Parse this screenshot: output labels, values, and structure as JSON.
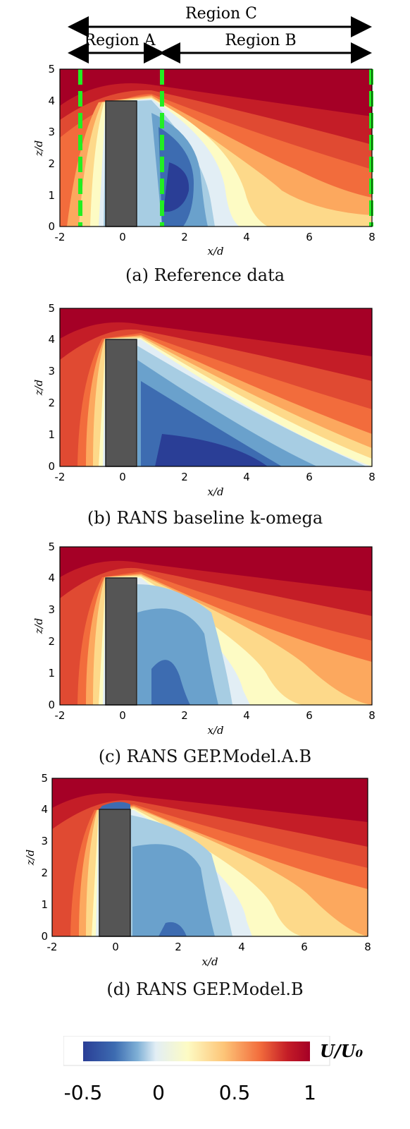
{
  "regions": {
    "region_c": "Region C",
    "region_a": "Region A",
    "region_b": "Region B"
  },
  "axes": {
    "xlabel": "x/d",
    "ylabel": "z/d",
    "x_ticks": [
      "-2",
      "0",
      "2",
      "4",
      "6",
      "8"
    ],
    "y_ticks": [
      "0",
      "1",
      "2",
      "3",
      "4",
      "5"
    ]
  },
  "panels": [
    {
      "id": "a",
      "caption": "(a) Reference data"
    },
    {
      "id": "b",
      "caption": "(b) RANS baseline k-omega"
    },
    {
      "id": "c",
      "caption": "(c) RANS GEP.Model.A.B"
    },
    {
      "id": "d",
      "caption": "(d) RANS GEP.Model.B"
    }
  ],
  "colorbar": {
    "label": "U/U₀",
    "ticks": [
      "-0.5",
      "0",
      "0.5",
      "1"
    ],
    "range": [
      -0.5,
      1
    ],
    "colors": [
      "#2a3e96",
      "#3d6cb1",
      "#7fb0d6",
      "#e2eef5",
      "#fdfbc4",
      "#fdc578",
      "#f26c3c",
      "#c41d27",
      "#a50026"
    ]
  },
  "chart_data": {
    "type": "heatmap",
    "xlabel": "x/d",
    "ylabel": "z/d",
    "xlim": [
      -2,
      8
    ],
    "ylim": [
      0,
      5
    ],
    "obstacle": {
      "x": [
        -0.5,
        0.5
      ],
      "z": [
        0,
        4
      ]
    },
    "region_lines_x": [
      -1.3,
      1.3,
      8.0
    ]
  }
}
